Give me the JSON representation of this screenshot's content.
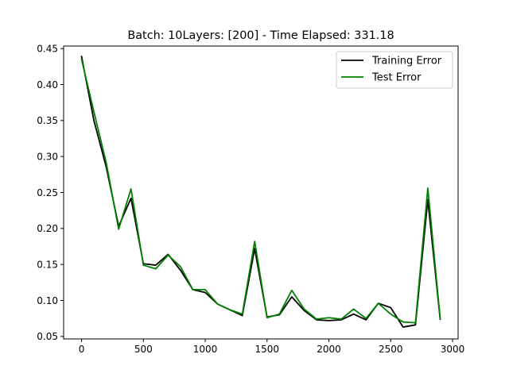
{
  "chart_data": {
    "type": "line",
    "title": "Batch: 10Layers: [200] - Time Elapsed: 331.18",
    "xlabel": "",
    "ylabel": "",
    "xlim": [
      -145,
      3045
    ],
    "ylim": [
      0.0465,
      0.4535
    ],
    "xticks": [
      0,
      500,
      1000,
      1500,
      2000,
      2500,
      3000
    ],
    "xtick_labels": [
      "0",
      "500",
      "1000",
      "1500",
      "2000",
      "2500",
      "3000"
    ],
    "yticks": [
      0.05,
      0.1,
      0.15,
      0.2,
      0.25,
      0.3,
      0.35,
      0.4,
      0.45
    ],
    "ytick_labels": [
      "0.05",
      "0.10",
      "0.15",
      "0.20",
      "0.25",
      "0.30",
      "0.35",
      "0.40",
      "0.45"
    ],
    "grid": false,
    "legend_position": "top-right",
    "x": [
      0,
      100,
      200,
      300,
      400,
      500,
      600,
      700,
      800,
      900,
      1000,
      1100,
      1200,
      1300,
      1400,
      1500,
      1600,
      1700,
      1800,
      1900,
      2000,
      2100,
      2200,
      2300,
      2400,
      2500,
      2600,
      2700,
      2800,
      2900
    ],
    "series": [
      {
        "name": "Training Error",
        "color": "#000000",
        "values": [
          0.439,
          0.35,
          0.285,
          0.203,
          0.242,
          0.151,
          0.149,
          0.164,
          0.142,
          0.115,
          0.111,
          0.095,
          0.087,
          0.079,
          0.172,
          0.077,
          0.08,
          0.105,
          0.086,
          0.073,
          0.072,
          0.073,
          0.081,
          0.073,
          0.096,
          0.09,
          0.063,
          0.066,
          0.24,
          0.074
        ]
      },
      {
        "name": "Test Error",
        "color": "#008000",
        "values": [
          0.435,
          0.362,
          0.291,
          0.199,
          0.255,
          0.149,
          0.144,
          0.163,
          0.147,
          0.115,
          0.115,
          0.095,
          0.087,
          0.081,
          0.182,
          0.076,
          0.081,
          0.114,
          0.088,
          0.074,
          0.076,
          0.074,
          0.088,
          0.075,
          0.096,
          0.081,
          0.07,
          0.069,
          0.256,
          0.075
        ]
      }
    ]
  }
}
